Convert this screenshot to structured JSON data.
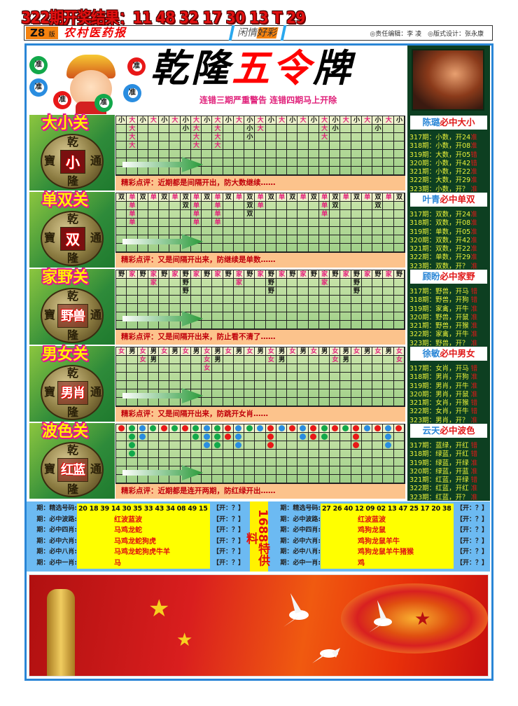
{
  "draw_result": "322期开奖结果：11 48 32 17 30 13 T 29",
  "header": {
    "edition": "Z8",
    "edition_suffix": "版",
    "paper_name": "农村医药报",
    "column_a": "闲情",
    "column_b": "好彩",
    "credits": "◎责任编辑：李 凌　◎版式设计：张永康"
  },
  "banner": {
    "title_black_1": "乾隆",
    "title_red": "五令",
    "title_black_2": "牌",
    "subtitle": "连错三期严重警告 连错四期马上开除",
    "ball_label": "准"
  },
  "colors": {
    "pink": "#e3207a",
    "red": "#e81818",
    "green": "#12a84a",
    "blue": "#2a8de0",
    "frame": "#2a86d6",
    "dark_green": "#0d3f21"
  },
  "coin_chars": {
    "top": "乾",
    "bottom": "隆",
    "left": "寶",
    "right": "通"
  },
  "sections": [
    {
      "title": "大小关",
      "coin_center": "小",
      "pink_chars": "大",
      "columns": [
        "小",
        "大大大大",
        "小",
        "大",
        "小",
        "大",
        "小小",
        "大大大大",
        "小",
        "大大大大",
        "小",
        "大",
        "小小小",
        "大大",
        "小",
        "大",
        "小",
        "大",
        "小",
        "大大大",
        "小小",
        "大",
        "小",
        "大",
        "小小",
        "大",
        "小"
      ],
      "comment": "精彩点评：近期都是间隔开出，防大数继续……"
    },
    {
      "title": "单双关",
      "coin_center": "双",
      "pink_chars": "单",
      "columns": [
        "双",
        "单单单单",
        "双",
        "单",
        "双",
        "单",
        "双双",
        "单单单单",
        "双",
        "单单单单",
        "双",
        "单",
        "双双双",
        "单单",
        "双",
        "单",
        "双",
        "单",
        "双",
        "单单单",
        "双双",
        "单",
        "双",
        "单",
        "双双",
        "单",
        "双"
      ],
      "comment": "精彩点评：又是间隔开出来，防继续是单数……"
    },
    {
      "title": "家野关",
      "coin_center": "野兽",
      "pink_chars": "家",
      "columns": [
        "野",
        "家",
        "野",
        "家家",
        "野",
        "家",
        "野野野",
        "家",
        "野",
        "家",
        "野",
        "家家",
        "野",
        "家",
        "野野野",
        "家",
        "野",
        "家",
        "野",
        "家家",
        "野",
        "家",
        "野野野",
        "家",
        "野",
        "家",
        "野"
      ],
      "comment": "精彩点评：又是间隔开出来，防止看不清了……"
    },
    {
      "title": "男女关",
      "coin_center": "男肖",
      "pink_chars": "女",
      "columns": [
        "女",
        "男",
        "女女",
        "男男",
        "女",
        "男",
        "女",
        "男",
        "女女女",
        "男男",
        "女",
        "男",
        "女",
        "男",
        "女女",
        "男男",
        "女",
        "男",
        "女",
        "男",
        "女女",
        "男男",
        "女",
        "男",
        "女",
        "男",
        "女女"
      ],
      "comment": "精彩点评：又是间隔开出来，防跳开女肖……"
    },
    {
      "title": "波色关",
      "coin_center": "红蓝",
      "balls": [
        "R",
        "GGGG",
        "BB",
        "G",
        "R",
        "G",
        "R",
        "GG",
        "BBB",
        "GGG",
        "RR",
        "BBB",
        "G",
        "B",
        "RRR",
        "B",
        "R",
        "BB",
        "RR",
        "GG",
        "R",
        "G",
        "RRR",
        "B",
        "R",
        "BBB",
        "R"
      ],
      "comment": "精彩点评：近期都是连开两期，防红绿开出……"
    }
  ],
  "experts": [
    {
      "name": "陈璐",
      "pick": "必中大小",
      "rows": [
        {
          "text": "317期：小数，开24",
          "verdict": "准"
        },
        {
          "text": "318期：小数，开08",
          "verdict": "准"
        },
        {
          "text": "319期：大数，开05",
          "verdict": "错"
        },
        {
          "text": "320期：小数，开42",
          "verdict": "错"
        },
        {
          "text": "321期：小数，开22",
          "verdict": "准"
        },
        {
          "text": "322期：大数，开29",
          "verdict": "准"
        },
        {
          "text": "323期：小数，开？ ",
          "verdict": "准"
        }
      ]
    },
    {
      "name": "叶青",
      "pick": "必中单双",
      "rows": [
        {
          "text": "317期：双数，开24",
          "verdict": "准"
        },
        {
          "text": "318期：双数，开08",
          "verdict": "准"
        },
        {
          "text": "319期：单数，开05",
          "verdict": "准"
        },
        {
          "text": "320期：双数，开42",
          "verdict": "准"
        },
        {
          "text": "321期：双数，开22",
          "verdict": "准"
        },
        {
          "text": "322期：单数，开29",
          "verdict": "准"
        },
        {
          "text": "323期：双数，开？ ",
          "verdict": "准"
        }
      ]
    },
    {
      "name": "顾盼",
      "pick": "必中家野",
      "rows": [
        {
          "text": "317期：野兽，开马 ",
          "verdict": "错"
        },
        {
          "text": "318期：野兽，开狗 ",
          "verdict": "错"
        },
        {
          "text": "319期：家禽，开牛 ",
          "verdict": "准"
        },
        {
          "text": "320期：野兽，开鼠 ",
          "verdict": "准"
        },
        {
          "text": "321期：野兽，开猴 ",
          "verdict": "准"
        },
        {
          "text": "322期：家禽，开牛 ",
          "verdict": "准"
        },
        {
          "text": "323期：野兽，开？ ",
          "verdict": "准"
        }
      ]
    },
    {
      "name": "徐敏",
      "pick": "必中男女",
      "rows": [
        {
          "text": "317期：女肖，开马 ",
          "verdict": "错"
        },
        {
          "text": "318期：男肖，开狗 ",
          "verdict": "准"
        },
        {
          "text": "319期：男肖，开牛 ",
          "verdict": "准"
        },
        {
          "text": "320期：男肖，开鼠 ",
          "verdict": "准"
        },
        {
          "text": "321期：女肖，开猴 ",
          "verdict": "错"
        },
        {
          "text": "322期：女肖，开牛 ",
          "verdict": "错"
        },
        {
          "text": "323期：男肖，开？ ",
          "verdict": "准"
        }
      ]
    },
    {
      "name": "云天",
      "pick": "必中波色",
      "rows": [
        {
          "text": "317期：蓝绿，开红 ",
          "verdict": "错"
        },
        {
          "text": "318期：绿蓝，开红 ",
          "verdict": "错"
        },
        {
          "text": "319期：绿蓝，开绿 ",
          "verdict": "准"
        },
        {
          "text": "320期：绿蓝，开蓝 ",
          "verdict": "准"
        },
        {
          "text": "321期：红蓝，开绿 ",
          "verdict": "错"
        },
        {
          "text": "322期：红蓝，开红 ",
          "verdict": "准"
        },
        {
          "text": "323期：红蓝，开？ ",
          "verdict": "准"
        }
      ]
    }
  ],
  "picks": {
    "open_label": "【开：？】",
    "special_label": "1688特供料",
    "left": [
      {
        "label": "期：精选号码:",
        "value": "20 18 39 14 30 35 33 43 34 08 49 15"
      },
      {
        "label": "期：必中波路:",
        "value": "红波蓝波"
      },
      {
        "label": "期：必中四肖:",
        "value": "马鸡龙蛇"
      },
      {
        "label": "期：必中六肖:",
        "value": "马鸡龙蛇狗虎"
      },
      {
        "label": "期：必中八肖:",
        "value": "马鸡龙蛇狗虎牛羊"
      },
      {
        "label": "期：必中一肖:",
        "value": "马"
      }
    ],
    "right": [
      {
        "label": "期：精选号码:",
        "value": "27 26 40 12 09 02 13 47 25 17 20 38"
      },
      {
        "label": "期：必中波路:",
        "value": "红波蓝波"
      },
      {
        "label": "期：必中四肖:",
        "value": "鸡狗龙鼠"
      },
      {
        "label": "期：必中六肖:",
        "value": "鸡狗龙鼠羊牛"
      },
      {
        "label": "期：必中八肖:",
        "value": "鸡狗龙鼠羊牛猪猴"
      },
      {
        "label": "期：必中一肖:",
        "value": "鸡"
      }
    ]
  }
}
